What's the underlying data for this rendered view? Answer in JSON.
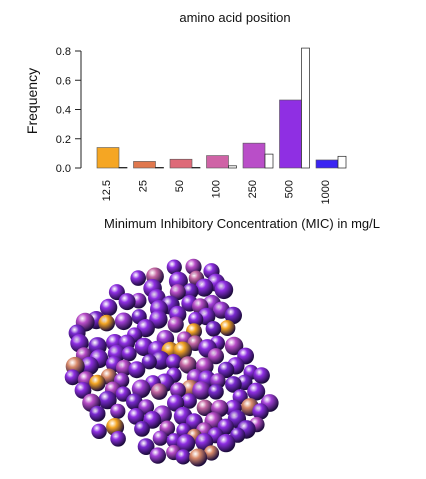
{
  "chart_data": {
    "type": "bar",
    "title": "amino acid position",
    "xlabel": "Minimum Inhibitory Concentration (MIC) in mg/L",
    "ylabel": "Frequency",
    "categories": [
      "12.5",
      "25",
      "50",
      "100",
      "250",
      "500",
      "1000"
    ],
    "yticks": [
      "0.0",
      "0.2",
      "0.4",
      "0.6",
      "0.8"
    ],
    "ylim": [
      0,
      0.82
    ],
    "grid": false,
    "legend": "none",
    "series": [
      {
        "values": [
          0.14,
          0.045,
          0.06,
          0.085,
          0.17,
          0.465,
          0.055
        ],
        "colors": [
          "#f5a623",
          "#e0784e",
          "#de6a78",
          "#cf63a6",
          "#b94ec8",
          "#8f2fe3",
          "#3a24f2"
        ]
      },
      {
        "values": [
          0.0,
          0.0,
          0.0,
          0.015,
          0.095,
          0.82,
          0.08
        ],
        "color": "#ffffff"
      }
    ]
  },
  "image": {
    "kind": "protein space-filling model",
    "palette": [
      "#8f2fe3",
      "#7a2ad0",
      "#a441d8",
      "#b94ec8",
      "#c567a3",
      "#d98a6a",
      "#f5a623"
    ]
  }
}
